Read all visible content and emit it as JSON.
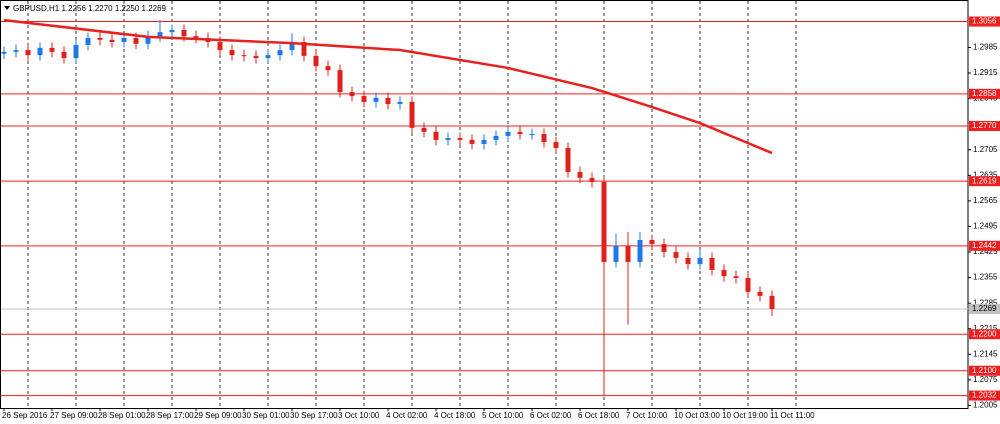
{
  "chart_data": {
    "type": "candlestick",
    "title": "GBPUSD,H1  1.2256 1.2270 1.2250 1.2269",
    "categories": [
      "26 Sep 2016",
      null,
      null,
      null,
      "27 Sep 09:00",
      null,
      null,
      null,
      "28 Sep 01:00",
      null,
      null,
      null,
      "28 Sep 17:00",
      null,
      null,
      null,
      "29 Sep 09:00",
      null,
      null,
      null,
      "30 Sep 01:00",
      null,
      null,
      null,
      "30 Sep 17:00",
      null,
      null,
      null,
      "3 Oct 10:00",
      null,
      null,
      null,
      "4 Oct 02:00",
      null,
      null,
      null,
      "4 Oct 18:00",
      null,
      null,
      null,
      "5 Oct 10:00",
      null,
      null,
      null,
      "6 Oct 02:00",
      null,
      null,
      null,
      "6 Oct 18:00",
      null,
      null,
      null,
      "7 Oct 10:00",
      null,
      null,
      null,
      "10 Oct 03:00",
      null,
      null,
      null,
      "10 Oct 19:00",
      null,
      null,
      null,
      "11 Oct 11:00"
    ],
    "open": [
      1.2968,
      1.2973,
      1.2978,
      1.2964,
      1.2984,
      1.2973,
      1.2956,
      1.2992,
      1.3011,
      1.3006,
      1.3,
      1.3011,
      1.2995,
      1.3016,
      1.3027,
      1.3033,
      1.3016,
      1.3011,
      1.3,
      1.2978,
      1.2964,
      1.2962,
      1.2956,
      1.2964,
      1.2978,
      1.3,
      1.2962,
      1.2934,
      1.2923,
      1.2863,
      1.2852,
      1.2836,
      1.2847,
      1.283,
      1.2836,
      1.2765,
      1.2754,
      1.2732,
      1.2737,
      1.2732,
      1.2721,
      1.2732,
      1.2743,
      1.2754,
      1.2748,
      1.2748,
      1.2726,
      1.271,
      1.2644,
      1.2628,
      1.2617,
      1.2398,
      1.2442,
      1.2398,
      1.2458,
      1.2447,
      1.2425,
      1.2409,
      1.2392,
      1.2409,
      1.2376,
      1.2359,
      1.2354,
      1.2316,
      1.2305
    ],
    "high": [
      1.2988,
      1.2993,
      1.2993,
      1.2999,
      1.2999,
      1.2988,
      1.3007,
      1.3026,
      1.3026,
      1.3021,
      1.3026,
      1.3026,
      1.3031,
      1.306,
      1.3048,
      1.3048,
      1.3031,
      1.3026,
      1.3015,
      1.2993,
      1.2979,
      1.2977,
      1.2979,
      1.2993,
      1.3024,
      1.3015,
      1.2977,
      1.2949,
      1.2938,
      1.2878,
      1.2867,
      1.2862,
      1.2862,
      1.2851,
      1.2851,
      1.278,
      1.2769,
      1.2752,
      1.2752,
      1.2747,
      1.2747,
      1.2758,
      1.2769,
      1.2769,
      1.2763,
      1.2763,
      1.2741,
      1.2725,
      1.2659,
      1.2643,
      1.2632,
      1.2475,
      1.248,
      1.248,
      1.2473,
      1.2462,
      1.244,
      1.2424,
      1.243,
      1.2424,
      1.2391,
      1.2374,
      1.2369,
      1.2331,
      1.232
    ],
    "low": [
      1.2953,
      1.2958,
      1.2949,
      1.2949,
      1.2958,
      1.2941,
      1.2941,
      1.2977,
      1.2991,
      1.2985,
      1.2985,
      1.298,
      1.298,
      1.3001,
      1.3012,
      1.3001,
      1.2996,
      1.2985,
      1.2963,
      1.2949,
      1.2947,
      1.2941,
      1.2941,
      1.2949,
      1.2963,
      1.2947,
      1.2919,
      1.2908,
      1.2848,
      1.2837,
      1.2821,
      1.2821,
      1.2815,
      1.2815,
      1.275,
      1.2739,
      1.2717,
      1.2717,
      1.2717,
      1.2706,
      1.2706,
      1.2717,
      1.2728,
      1.2733,
      1.2733,
      1.2711,
      1.2695,
      1.2629,
      1.2613,
      1.2602,
      1.2032,
      1.2383,
      1.2226,
      1.2383,
      1.2432,
      1.241,
      1.2394,
      1.2377,
      1.2377,
      1.2361,
      1.2344,
      1.2339,
      1.2301,
      1.229,
      1.225
    ],
    "close": [
      1.2973,
      1.2978,
      1.2964,
      1.2984,
      1.2973,
      1.2956,
      1.2992,
      1.3011,
      1.3006,
      1.3,
      1.3011,
      1.2995,
      1.3016,
      1.3027,
      1.3033,
      1.3016,
      1.3011,
      1.3,
      1.2978,
      1.2964,
      1.2962,
      1.2956,
      1.2964,
      1.2978,
      1.3,
      1.2962,
      1.2934,
      1.2923,
      1.2863,
      1.2852,
      1.2836,
      1.2847,
      1.283,
      1.2836,
      1.2765,
      1.2754,
      1.2732,
      1.2737,
      1.2732,
      1.2721,
      1.2732,
      1.2743,
      1.2754,
      1.2748,
      1.2748,
      1.2726,
      1.271,
      1.2644,
      1.2628,
      1.2617,
      1.2398,
      1.2442,
      1.2398,
      1.2458,
      1.2447,
      1.2425,
      1.2409,
      1.2392,
      1.2409,
      1.2376,
      1.2359,
      1.2354,
      1.2316,
      1.2305,
      1.2269
    ],
    "up_color": "#1e78e6",
    "down_color": "#e0201a",
    "moving_average": {
      "color": "#e8211e",
      "x": [
        0,
        12,
        24,
        33,
        42,
        49,
        54,
        58,
        64
      ],
      "values": [
        1.306,
        1.3014,
        1.2997,
        1.2978,
        1.2929,
        1.2874,
        1.2822,
        1.2778,
        1.2696
      ]
    },
    "levels": {
      "color": "#f01e1e",
      "values": [
        1.3056,
        1.2858,
        {
          "value": 1.277,
          "label": "1.2770"
        },
        1.2619,
        1.2442,
        {
          "value": 1.22,
          "label": "1.2200"
        },
        {
          "value": 1.21,
          "label": "1.2100"
        },
        1.2032
      ]
    },
    "current_price": 1.2269,
    "ylim": [
      1.1998,
      1.3115
    ],
    "yticks": [
      1.2005,
      1.2075,
      1.2145,
      1.2215,
      1.2285,
      1.2355,
      1.2425,
      1.2495,
      1.2565,
      1.2635,
      1.2705,
      1.2845,
      1.2915,
      1.2985
    ]
  }
}
